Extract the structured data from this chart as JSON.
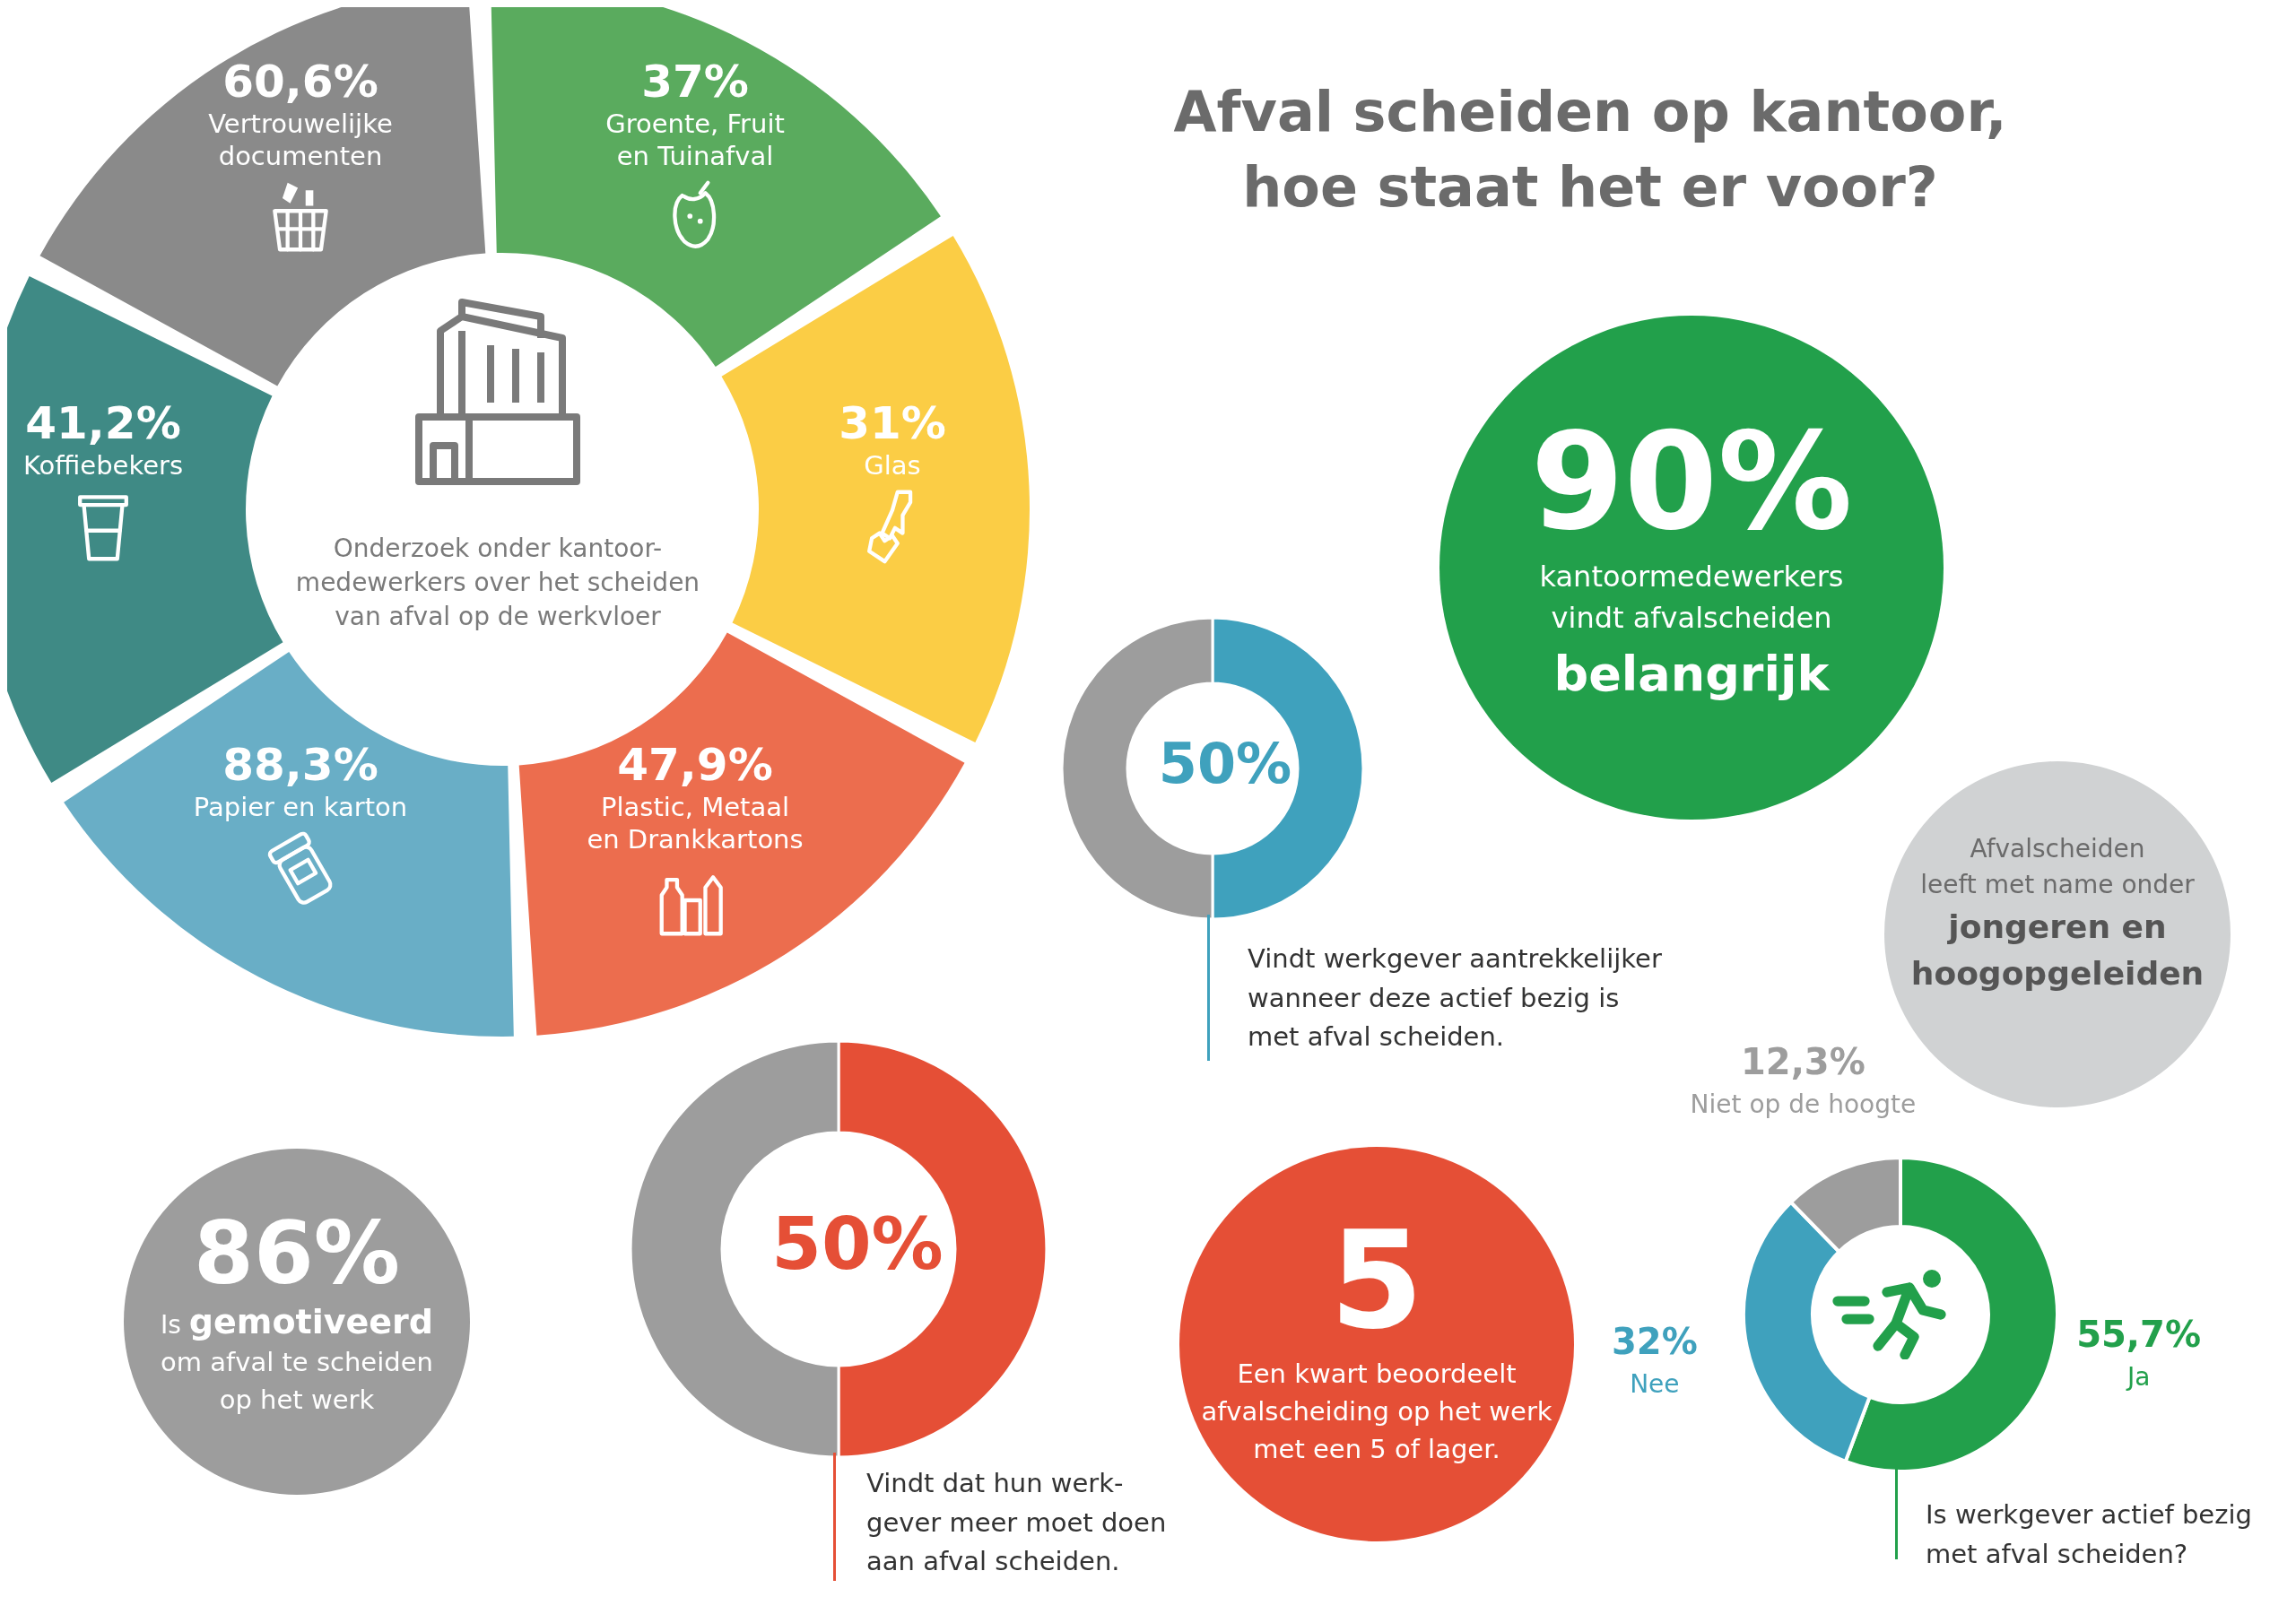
{
  "chart_data": [
    {
      "type": "other",
      "categories": [
        "Groente, Fruit\nen Tuinafval",
        "Glas",
        "Plastic, Metaal\nen Drankkartons",
        "Papier en karton",
        "Koffiebekers",
        "Vertrouwelijke\ndocumenten"
      ],
      "values": [
        37,
        31,
        47.9,
        88.3,
        41.2,
        60.6
      ],
      "value_labels": [
        "37%",
        "31%",
        "47,9%",
        "88,3%",
        "41,2%",
        "60,6%"
      ],
      "colors": [
        "#5aab5e",
        "#fbcd45",
        "#ec6d4e",
        "#69aec6",
        "#3f8a85",
        "#8a8a8a"
      ],
      "annotations": [
        "Onderzoek onder kantoor-\nmedewerkers over het scheiden\nvan afval op de werkvloer"
      ]
    },
    {
      "type": "other",
      "title": "Afval scheiden op kantoor,\nhoe staat het er voor?"
    },
    {
      "type": "donut",
      "categories": [
        null,
        null
      ],
      "values": [
        50,
        50
      ],
      "value_labels": [
        "50%",
        null
      ],
      "colors": [
        "#3fa1bd",
        "#9d9d9d"
      ],
      "annotations": [
        "Vindt werkgever aantrekkelijker\nwanneer deze actief bezig is\nmet afval scheiden."
      ]
    },
    {
      "type": "donut",
      "categories": [
        null,
        null
      ],
      "values": [
        50,
        50
      ],
      "value_labels": [
        "50%",
        null
      ],
      "colors": [
        "#e54f36",
        "#9d9d9d"
      ],
      "annotations": [
        "Vindt dat hun werk-\ngever meer moet doen\naan afval scheiden."
      ]
    },
    {
      "type": "donut",
      "categories": [
        "Ja",
        "Nee",
        "Niet op de hoogte"
      ],
      "values": [
        55.7,
        32,
        12.3
      ],
      "value_labels": [
        "55,7%",
        "32%",
        "12,3%"
      ],
      "colors": [
        "#22a04b",
        "#3fa1bd",
        "#9d9d9d"
      ],
      "annotations": [
        "Is werkgever actief bezig\nmet afval scheiden?"
      ]
    },
    {
      "type": "other",
      "color": "#22a04b",
      "annotations": [
        "90%",
        "kantoormedewerkers\nvindt afvalscheiden",
        "belangrijk"
      ]
    },
    {
      "type": "other",
      "color": "#d0d2d3",
      "annotations": [
        "Afvalscheiden\nleeft met name onder",
        "jongeren en\nhoogopgeleiden"
      ]
    },
    {
      "type": "other",
      "color": "#9d9d9d",
      "annotations": [
        "86%",
        "Is",
        "gemotiveerd",
        "om afval te scheiden\nop het werk"
      ]
    },
    {
      "type": "other",
      "color": "#e54f36",
      "annotations": [
        "5",
        "Een kwart beoordeelt\nafvalscheiding op het werk\nmet een 5 of lager."
      ]
    }
  ]
}
